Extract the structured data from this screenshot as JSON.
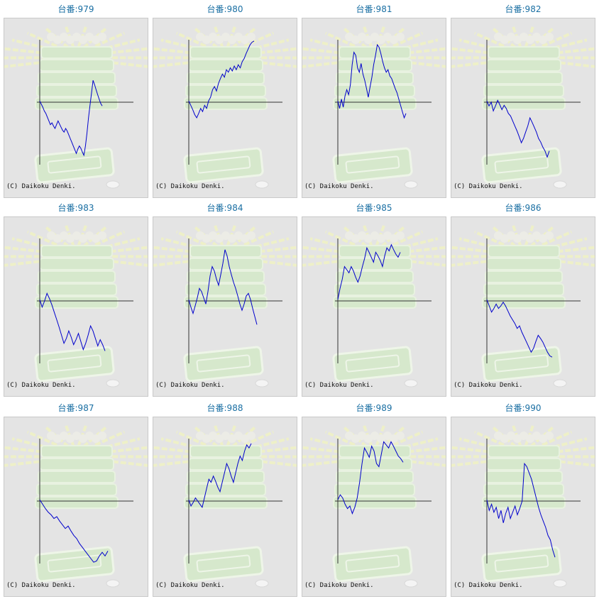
{
  "axis": {
    "zero_color": "#333333",
    "line_color": "#0000cc",
    "background": "#e4e4e4"
  },
  "credit_text": "(C) Daikoku Denki.",
  "chart_data": [
    {
      "type": "line",
      "title": "台番:979",
      "ylim": [
        -1,
        1
      ],
      "values": [
        0.02,
        -0.03,
        -0.08,
        -0.14,
        -0.18,
        -0.24,
        -0.3,
        -0.36,
        -0.33,
        -0.38,
        -0.42,
        -0.36,
        -0.3,
        -0.35,
        -0.4,
        -0.45,
        -0.48,
        -0.42,
        -0.46,
        -0.52,
        -0.58,
        -0.64,
        -0.7,
        -0.76,
        -0.82,
        -0.75,
        -0.7,
        -0.74,
        -0.8,
        -0.85,
        -0.7,
        -0.5,
        -0.25,
        -0.05,
        0.15,
        0.35,
        0.28,
        0.2,
        0.12,
        0.05,
        -0.02,
        -0.06
      ]
    },
    {
      "type": "line",
      "title": "台番:980",
      "ylim": [
        -1,
        1
      ],
      "values": [
        0.02,
        -0.05,
        -0.12,
        -0.2,
        -0.25,
        -0.18,
        -0.1,
        -0.15,
        -0.05,
        -0.1,
        0.02,
        0.08,
        0.2,
        0.25,
        0.18,
        0.3,
        0.38,
        0.45,
        0.4,
        0.52,
        0.48,
        0.55,
        0.5,
        0.58,
        0.52,
        0.6,
        0.55,
        0.65,
        0.7,
        0.78,
        0.85,
        0.92,
        0.96,
        0.98
      ]
    },
    {
      "type": "line",
      "title": "台番:981",
      "ylim": [
        -1,
        1
      ],
      "values": [
        0.02,
        -0.1,
        0.05,
        -0.08,
        0.1,
        0.2,
        0.12,
        0.28,
        0.6,
        0.8,
        0.75,
        0.55,
        0.48,
        0.62,
        0.45,
        0.35,
        0.22,
        0.08,
        0.25,
        0.4,
        0.6,
        0.75,
        0.92,
        0.88,
        0.78,
        0.65,
        0.55,
        0.48,
        0.52,
        0.42,
        0.38,
        0.3,
        0.22,
        0.15,
        0.05,
        -0.05,
        -0.15,
        -0.25,
        -0.18
      ]
    },
    {
      "type": "line",
      "title": "台番:982",
      "ylim": [
        -1,
        1
      ],
      "values": [
        0.02,
        -0.06,
        0.0,
        -0.14,
        -0.06,
        0.03,
        -0.04,
        -0.12,
        -0.05,
        -0.1,
        -0.18,
        -0.22,
        -0.3,
        -0.38,
        -0.46,
        -0.55,
        -0.65,
        -0.58,
        -0.48,
        -0.38,
        -0.25,
        -0.32,
        -0.4,
        -0.48,
        -0.58,
        -0.64,
        -0.72,
        -0.78,
        -0.88,
        -0.78
      ]
    },
    {
      "type": "line",
      "title": "台番:983",
      "ylim": [
        -1,
        1
      ],
      "values": [
        0.02,
        -0.1,
        0.0,
        0.12,
        0.04,
        -0.06,
        -0.18,
        -0.3,
        -0.42,
        -0.55,
        -0.68,
        -0.6,
        -0.48,
        -0.58,
        -0.7,
        -0.62,
        -0.52,
        -0.65,
        -0.78,
        -0.68,
        -0.55,
        -0.4,
        -0.48,
        -0.6,
        -0.72,
        -0.62,
        -0.7,
        -0.8
      ]
    },
    {
      "type": "line",
      "title": "台番:984",
      "ylim": [
        -1,
        1
      ],
      "values": [
        0.02,
        -0.1,
        -0.2,
        -0.08,
        0.05,
        0.2,
        0.15,
        0.05,
        -0.05,
        0.15,
        0.4,
        0.55,
        0.48,
        0.35,
        0.25,
        0.42,
        0.6,
        0.82,
        0.72,
        0.55,
        0.42,
        0.3,
        0.2,
        0.08,
        -0.05,
        -0.15,
        -0.05,
        0.08,
        0.12,
        0.02,
        -0.12,
        -0.25,
        -0.38
      ]
    },
    {
      "type": "line",
      "title": "台番:985",
      "ylim": [
        -1,
        1
      ],
      "values": [
        0.02,
        0.2,
        0.35,
        0.55,
        0.5,
        0.45,
        0.55,
        0.48,
        0.38,
        0.3,
        0.4,
        0.55,
        0.68,
        0.85,
        0.78,
        0.7,
        0.62,
        0.78,
        0.72,
        0.65,
        0.55,
        0.72,
        0.85,
        0.8,
        0.9,
        0.82,
        0.75,
        0.7,
        0.78
      ]
    },
    {
      "type": "line",
      "title": "台番:986",
      "ylim": [
        -1,
        1
      ],
      "values": [
        0.02,
        -0.08,
        -0.18,
        -0.12,
        -0.05,
        -0.12,
        -0.08,
        -0.02,
        -0.08,
        -0.16,
        -0.24,
        -0.3,
        -0.36,
        -0.44,
        -0.4,
        -0.5,
        -0.58,
        -0.66,
        -0.74,
        -0.82,
        -0.76,
        -0.65,
        -0.55,
        -0.6,
        -0.66,
        -0.74,
        -0.82,
        -0.88,
        -0.9
      ]
    },
    {
      "type": "line",
      "title": "台番:987",
      "ylim": [
        -1,
        1
      ],
      "values": [
        0.02,
        -0.05,
        -0.12,
        -0.18,
        -0.22,
        -0.28,
        -0.25,
        -0.32,
        -0.38,
        -0.44,
        -0.4,
        -0.48,
        -0.55,
        -0.6,
        -0.68,
        -0.74,
        -0.8,
        -0.86,
        -0.92,
        -0.98,
        -0.96,
        -0.88,
        -0.82,
        -0.88,
        -0.8
      ]
    },
    {
      "type": "line",
      "title": "台番:988",
      "ylim": [
        -1,
        1
      ],
      "values": [
        0.02,
        -0.08,
        -0.02,
        0.05,
        0.0,
        -0.05,
        -0.1,
        0.05,
        0.2,
        0.35,
        0.3,
        0.4,
        0.32,
        0.22,
        0.15,
        0.3,
        0.45,
        0.6,
        0.52,
        0.4,
        0.3,
        0.45,
        0.6,
        0.72,
        0.65,
        0.8,
        0.9,
        0.85,
        0.92
      ]
    },
    {
      "type": "line",
      "title": "台番:989",
      "ylim": [
        -1,
        1
      ],
      "values": [
        0.02,
        0.1,
        0.05,
        -0.05,
        -0.12,
        -0.08,
        -0.2,
        -0.1,
        0.05,
        0.3,
        0.6,
        0.85,
        0.78,
        0.7,
        0.88,
        0.8,
        0.6,
        0.55,
        0.75,
        0.95,
        0.9,
        0.85,
        0.95,
        0.88,
        0.8,
        0.72,
        0.68,
        0.62
      ]
    },
    {
      "type": "line",
      "title": "台番:990",
      "ylim": [
        -1,
        1
      ],
      "values": [
        0.02,
        -0.15,
        -0.05,
        -0.18,
        -0.1,
        -0.28,
        -0.15,
        -0.35,
        -0.2,
        -0.1,
        -0.28,
        -0.18,
        -0.08,
        -0.22,
        -0.12,
        0.0,
        0.6,
        0.55,
        0.45,
        0.35,
        0.2,
        0.05,
        -0.1,
        -0.22,
        -0.32,
        -0.42,
        -0.55,
        -0.62,
        -0.78,
        -0.9
      ]
    }
  ]
}
